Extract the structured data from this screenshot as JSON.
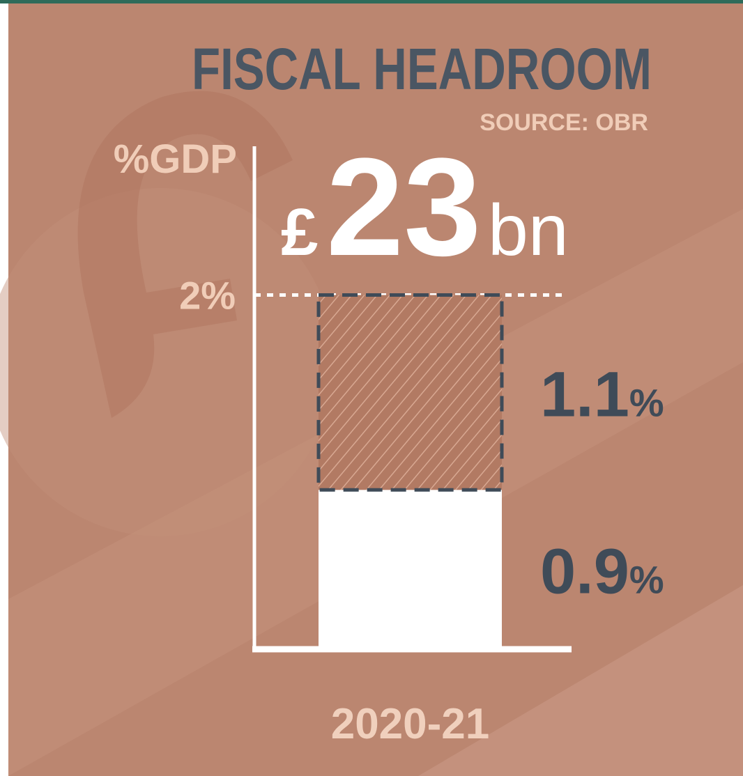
{
  "chart_data": {
    "type": "stacked_bar",
    "title": "FISCAL HEADROOM",
    "source": "SOURCE: OBR",
    "ylabel": "%GDP",
    "annotation": {
      "currency": "£",
      "amount": "23",
      "unit": "bn"
    },
    "categories": [
      "2020-21"
    ],
    "series": [
      {
        "color": "#ffffff",
        "values": [
          0.9
        ],
        "value_labels": [
          "0.9%"
        ],
        "hatched": false
      },
      {
        "color": "#3f4b58",
        "values": [
          1.1
        ],
        "value_labels": [
          "1.1%"
        ],
        "hatched": true
      }
    ],
    "ylim": [
      0,
      2.84
    ],
    "yticks": [
      {
        "value": 2,
        "label": "2%"
      }
    ],
    "grid": true
  }
}
